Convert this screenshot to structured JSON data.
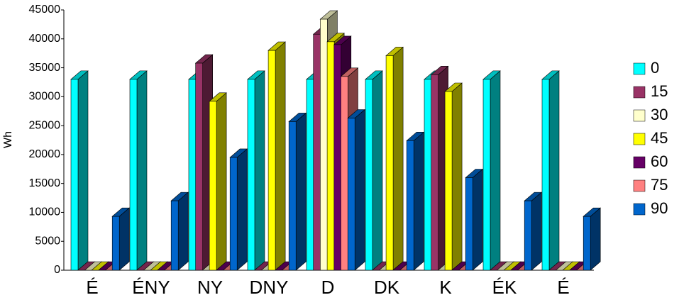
{
  "chart_data": {
    "type": "bar3d",
    "y_label": "Wh",
    "categories": [
      "É",
      "ÉNY",
      "NY",
      "DNY",
      "D",
      "DK",
      "K",
      "ÉK",
      "É"
    ],
    "series": [
      {
        "name": "0",
        "color": "#00ffff",
        "values": [
          33000,
          33000,
          33000,
          33000,
          33000,
          33000,
          33000,
          33000,
          33000
        ]
      },
      {
        "name": "15",
        "color": "#993366",
        "values": [
          0,
          0,
          35800,
          0,
          40800,
          0,
          33800,
          0,
          0
        ]
      },
      {
        "name": "30",
        "color": "#ffffcc",
        "values": [
          0,
          0,
          0,
          0,
          43400,
          0,
          0,
          0,
          0
        ]
      },
      {
        "name": "45",
        "color": "#ffff00",
        "values": [
          0,
          0,
          29200,
          38000,
          39500,
          37100,
          30900,
          0,
          0
        ]
      },
      {
        "name": "60",
        "color": "#660066",
        "values": [
          0,
          0,
          0,
          0,
          39000,
          0,
          0,
          0,
          0
        ]
      },
      {
        "name": "75",
        "color": "#ff8080",
        "values": [
          0,
          0,
          0,
          0,
          33500,
          0,
          0,
          0,
          0
        ]
      },
      {
        "name": "90",
        "color": "#0066cc",
        "values": [
          9300,
          12000,
          19500,
          25700,
          26300,
          22400,
          16000,
          12000,
          9300
        ]
      }
    ],
    "ylim": [
      0,
      45000
    ],
    "yticks": [
      0,
      5000,
      10000,
      15000,
      20000,
      25000,
      30000,
      35000,
      40000,
      45000
    ],
    "legend": "right"
  }
}
